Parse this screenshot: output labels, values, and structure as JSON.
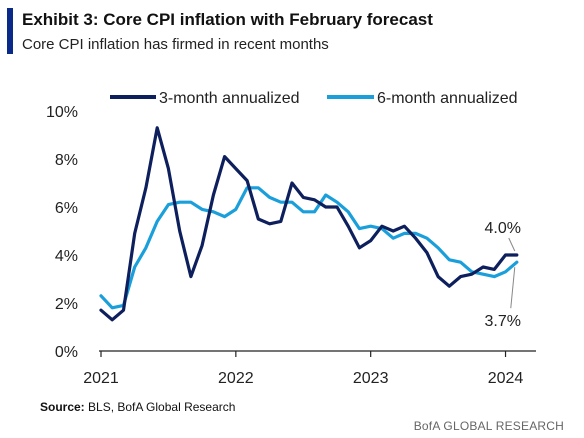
{
  "header": {
    "title": "Exhibit 3: Core CPI inflation with February forecast",
    "subtitle": "Core CPI inflation has firmed in recent months"
  },
  "footer": {
    "source_label": "Source:",
    "source_text": " BLS, BofA Global Research",
    "brand": "BofA GLOBAL RESEARCH"
  },
  "colors": {
    "accent": "#0a2a8a",
    "series_3m": "#0d1f5c",
    "series_6m": "#1a9fdb"
  },
  "chart_data": {
    "type": "line",
    "title": "Exhibit 3: Core CPI inflation with February forecast",
    "subtitle": "Core CPI inflation has firmed in recent months",
    "xlabel": "",
    "ylabel": "",
    "xlim": [
      "2021-01",
      "2024-03"
    ],
    "ylim": [
      0,
      10
    ],
    "y_ticks": [
      0,
      2,
      4,
      6,
      8,
      10
    ],
    "y_tick_labels": [
      "0%",
      "2%",
      "4%",
      "6%",
      "8%",
      "10%"
    ],
    "x_ticks": [
      "2021-01",
      "2022-01",
      "2023-01",
      "2024-01"
    ],
    "x_tick_labels": [
      "2021",
      "2022",
      "2023",
      "2024"
    ],
    "grid": false,
    "legend_position": "top",
    "x": [
      "2021-01",
      "2021-02",
      "2021-03",
      "2021-04",
      "2021-05",
      "2021-06",
      "2021-07",
      "2021-08",
      "2021-09",
      "2021-10",
      "2021-11",
      "2021-12",
      "2022-01",
      "2022-02",
      "2022-03",
      "2022-04",
      "2022-05",
      "2022-06",
      "2022-07",
      "2022-08",
      "2022-09",
      "2022-10",
      "2022-11",
      "2022-12",
      "2023-01",
      "2023-02",
      "2023-03",
      "2023-04",
      "2023-05",
      "2023-06",
      "2023-07",
      "2023-08",
      "2023-09",
      "2023-10",
      "2023-11",
      "2023-12",
      "2024-01",
      "2024-02"
    ],
    "series": [
      {
        "name": "3-month annualized",
        "values": [
          1.7,
          1.3,
          1.7,
          4.9,
          6.8,
          9.3,
          7.6,
          5.0,
          3.1,
          4.4,
          6.5,
          8.1,
          7.6,
          7.1,
          5.5,
          5.3,
          5.4,
          7.0,
          6.4,
          6.3,
          6.0,
          6.0,
          5.2,
          4.3,
          4.6,
          5.2,
          5.0,
          5.2,
          4.7,
          4.1,
          3.1,
          2.7,
          3.1,
          3.2,
          3.5,
          3.4,
          4.0,
          4.0
        ]
      },
      {
        "name": "6-month annualized",
        "values": [
          2.3,
          1.8,
          1.9,
          3.5,
          4.3,
          5.4,
          6.1,
          6.2,
          6.2,
          5.9,
          5.8,
          5.6,
          5.9,
          6.8,
          6.8,
          6.4,
          6.2,
          6.2,
          5.8,
          5.8,
          6.5,
          6.2,
          5.8,
          5.1,
          5.2,
          5.1,
          4.7,
          4.9,
          4.9,
          4.7,
          4.3,
          3.8,
          3.7,
          3.3,
          3.2,
          3.1,
          3.3,
          3.7
        ]
      }
    ],
    "annotations": [
      {
        "text": "4.0%",
        "series": "3-month annualized",
        "x": "2024-02",
        "y": 4.0,
        "placement": "above"
      },
      {
        "text": "3.7%",
        "series": "6-month annualized",
        "x": "2024-02",
        "y": 3.7,
        "placement": "below"
      }
    ]
  }
}
